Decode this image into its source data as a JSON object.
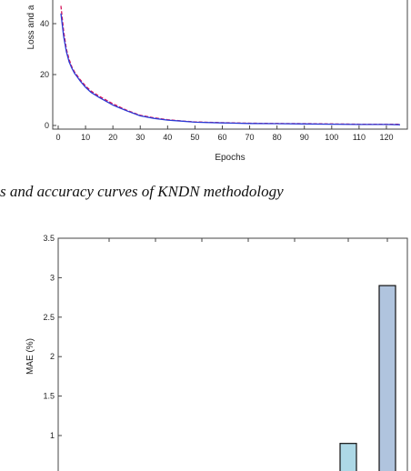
{
  "caption": "s and accuracy curves of KNDN methodology",
  "chart_data": [
    {
      "type": "line",
      "xlabel": "Epochs",
      "ylabel": "Loss and a",
      "xlim": [
        0,
        125
      ],
      "ylim_visible": [
        -3,
        52
      ],
      "x_ticks": [
        "0",
        "10",
        "20",
        "30",
        "40",
        "50",
        "60",
        "70",
        "80",
        "90",
        "100",
        "110",
        "120"
      ],
      "y_ticks": [
        "0",
        "20",
        "40"
      ],
      "series": [
        {
          "color": "#d4145a",
          "style": "dashed",
          "x": [
            1,
            2,
            3,
            4,
            5,
            6,
            7,
            8,
            10,
            12,
            15,
            20,
            25,
            30,
            35,
            40,
            45,
            50,
            60,
            70,
            80,
            90,
            100,
            110,
            120,
            125
          ],
          "y": [
            47,
            37,
            30,
            26,
            23,
            21,
            19.5,
            18,
            15.5,
            13.5,
            11.5,
            8.5,
            6,
            4,
            3,
            2.3,
            1.8,
            1.4,
            1.1,
            0.9,
            0.8,
            0.7,
            0.6,
            0.5,
            0.5,
            0.5
          ]
        },
        {
          "color": "#2b3bd6",
          "style": "solid",
          "x": [
            1,
            2,
            3,
            4,
            5,
            6,
            7,
            8,
            10,
            12,
            15,
            20,
            25,
            30,
            35,
            40,
            45,
            50,
            60,
            70,
            80,
            90,
            100,
            110,
            120,
            125
          ],
          "y": [
            44,
            35,
            29,
            25,
            22.5,
            20.5,
            19,
            17.5,
            15,
            13,
            11,
            8,
            5.8,
            3.8,
            2.8,
            2.1,
            1.7,
            1.3,
            1.0,
            0.8,
            0.7,
            0.6,
            0.5,
            0.4,
            0.4,
            0.3
          ]
        }
      ]
    },
    {
      "type": "bar",
      "ylabel": "MAE (%)",
      "ylim": [
        0,
        3.5
      ],
      "y_ticks": [
        "1",
        "1.5",
        "2",
        "2.5",
        "3",
        "3.5"
      ],
      "bars": [
        {
          "value": 0.9,
          "color": "#add8e6"
        },
        {
          "value": 2.9,
          "color": "#b0c4de"
        }
      ]
    }
  ]
}
